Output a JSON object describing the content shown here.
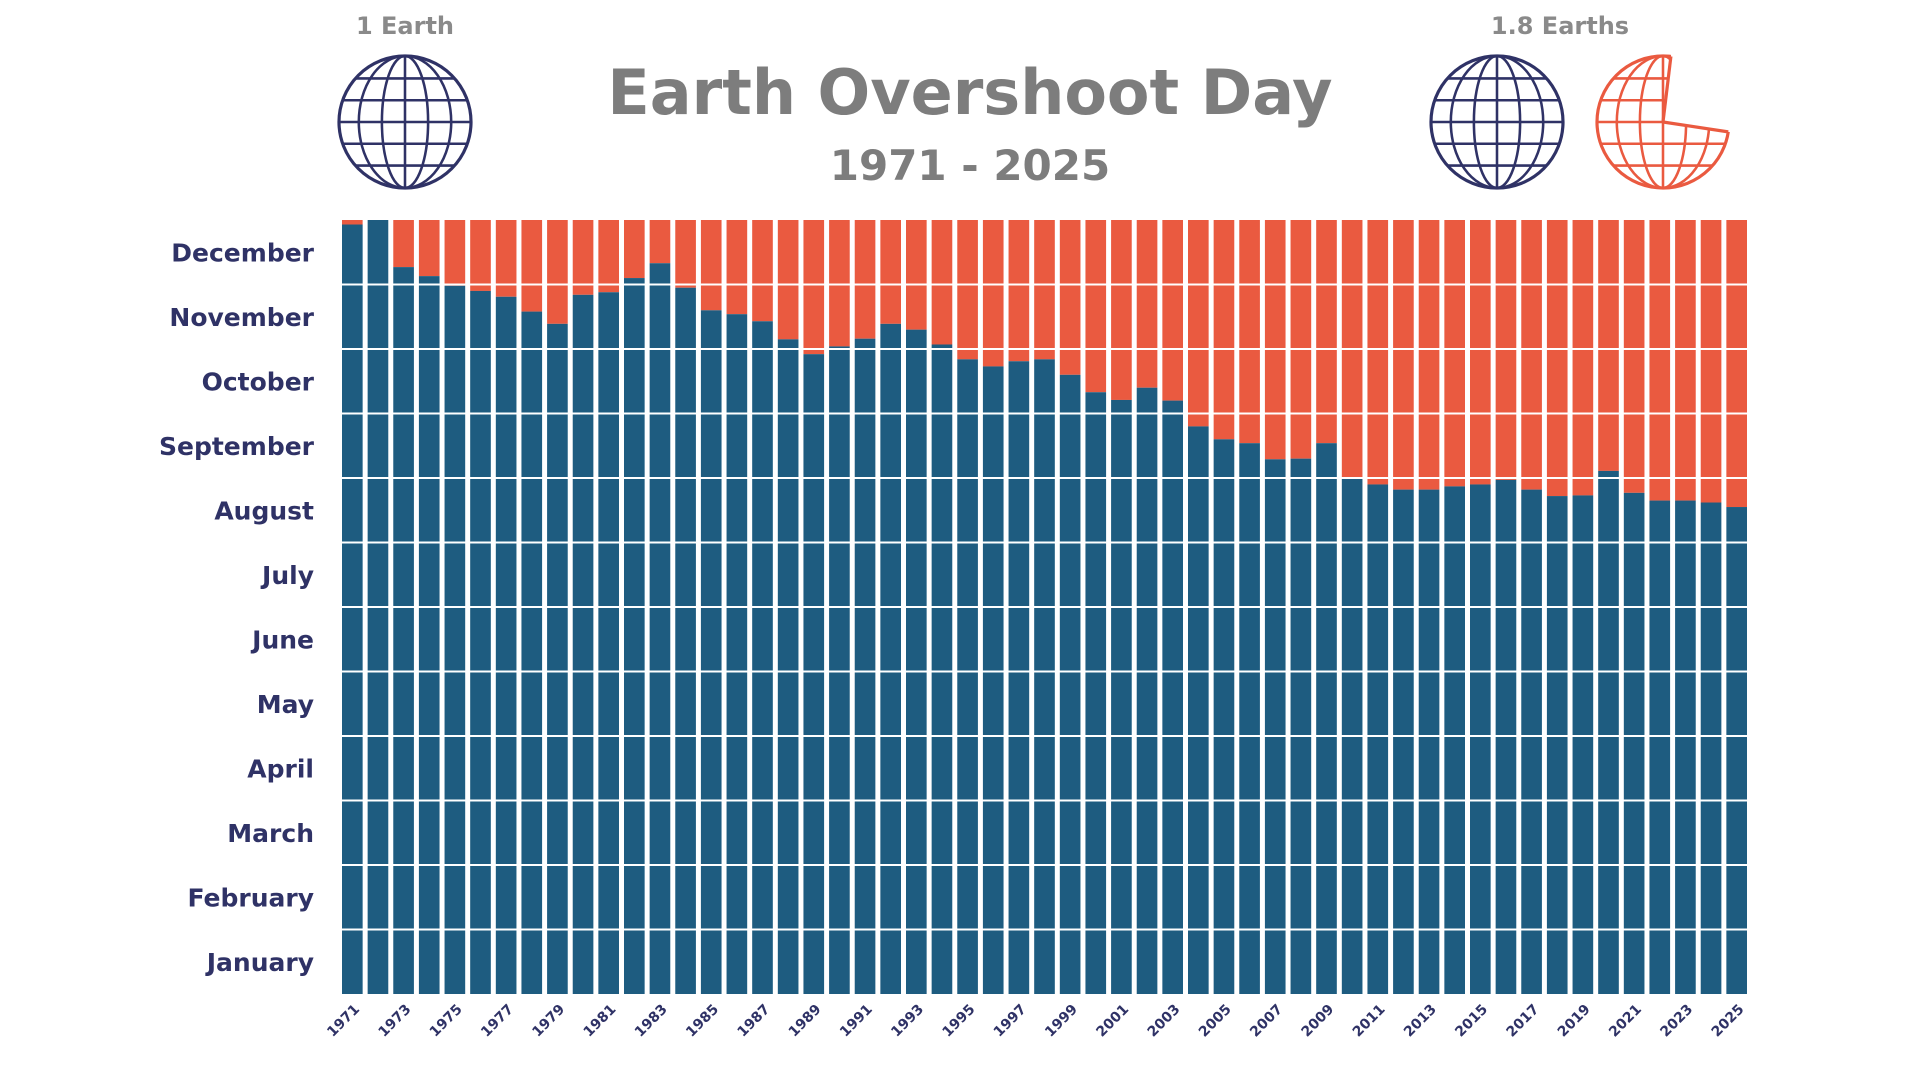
{
  "chart_data": {
    "type": "bar",
    "title": "Earth Overshoot Day",
    "subtitle": "1971 - 2025",
    "legend": {
      "left_caption": "1 Earth",
      "right_caption": "1.8 Earths"
    },
    "y_tick_labels": [
      "January",
      "February",
      "March",
      "April",
      "May",
      "June",
      "July",
      "August",
      "September",
      "October",
      "November",
      "December"
    ],
    "x_tick_labels": [
      "1971",
      "1973",
      "1975",
      "1977",
      "1979",
      "1981",
      "1983",
      "1985",
      "1987",
      "1989",
      "1991",
      "1993",
      "1995",
      "1997",
      "1999",
      "2001",
      "2003",
      "2005",
      "2007",
      "2009",
      "2011",
      "2013",
      "2015",
      "2017",
      "2019",
      "2021",
      "2023",
      "2025"
    ],
    "ylim_months": [
      0,
      12
    ],
    "years": [
      1971,
      1972,
      1973,
      1974,
      1975,
      1976,
      1977,
      1978,
      1979,
      1980,
      1981,
      1982,
      1983,
      1984,
      1985,
      1986,
      1987,
      1988,
      1989,
      1990,
      1991,
      1992,
      1993,
      1994,
      1995,
      1996,
      1997,
      1998,
      1999,
      2000,
      2001,
      2002,
      2003,
      2004,
      2005,
      2006,
      2007,
      2008,
      2009,
      2010,
      2011,
      2012,
      2013,
      2014,
      2015,
      2016,
      2017,
      2018,
      2019,
      2020,
      2021,
      2022,
      2023,
      2024,
      2025
    ],
    "overshoot_month_values": [
      11.93,
      12.0,
      11.27,
      11.13,
      10.98,
      10.9,
      10.81,
      10.58,
      10.39,
      10.84,
      10.88,
      11.1,
      11.33,
      10.95,
      10.6,
      10.54,
      10.43,
      10.15,
      9.92,
      10.04,
      10.16,
      10.39,
      10.3,
      10.07,
      9.84,
      9.73,
      9.81,
      9.84,
      9.6,
      9.33,
      9.21,
      9.4,
      9.2,
      8.8,
      8.6,
      8.54,
      8.29,
      8.3,
      8.54,
      8.0,
      7.9,
      7.82,
      7.82,
      7.87,
      7.9,
      7.97,
      7.82,
      7.72,
      7.73,
      8.11,
      7.77,
      7.65,
      7.65,
      7.62,
      7.55
    ],
    "colors": {
      "within_budget": "#1e5c80",
      "overshoot": "#ea5a40",
      "gridline": "#ffffff",
      "globe_navy": "#2f3266",
      "globe_orange": "#ea5a40"
    }
  },
  "icons": {
    "left_globe": "globe-icon",
    "right_globe": "globe-icon",
    "partial_globe": "partial-globe-icon"
  }
}
